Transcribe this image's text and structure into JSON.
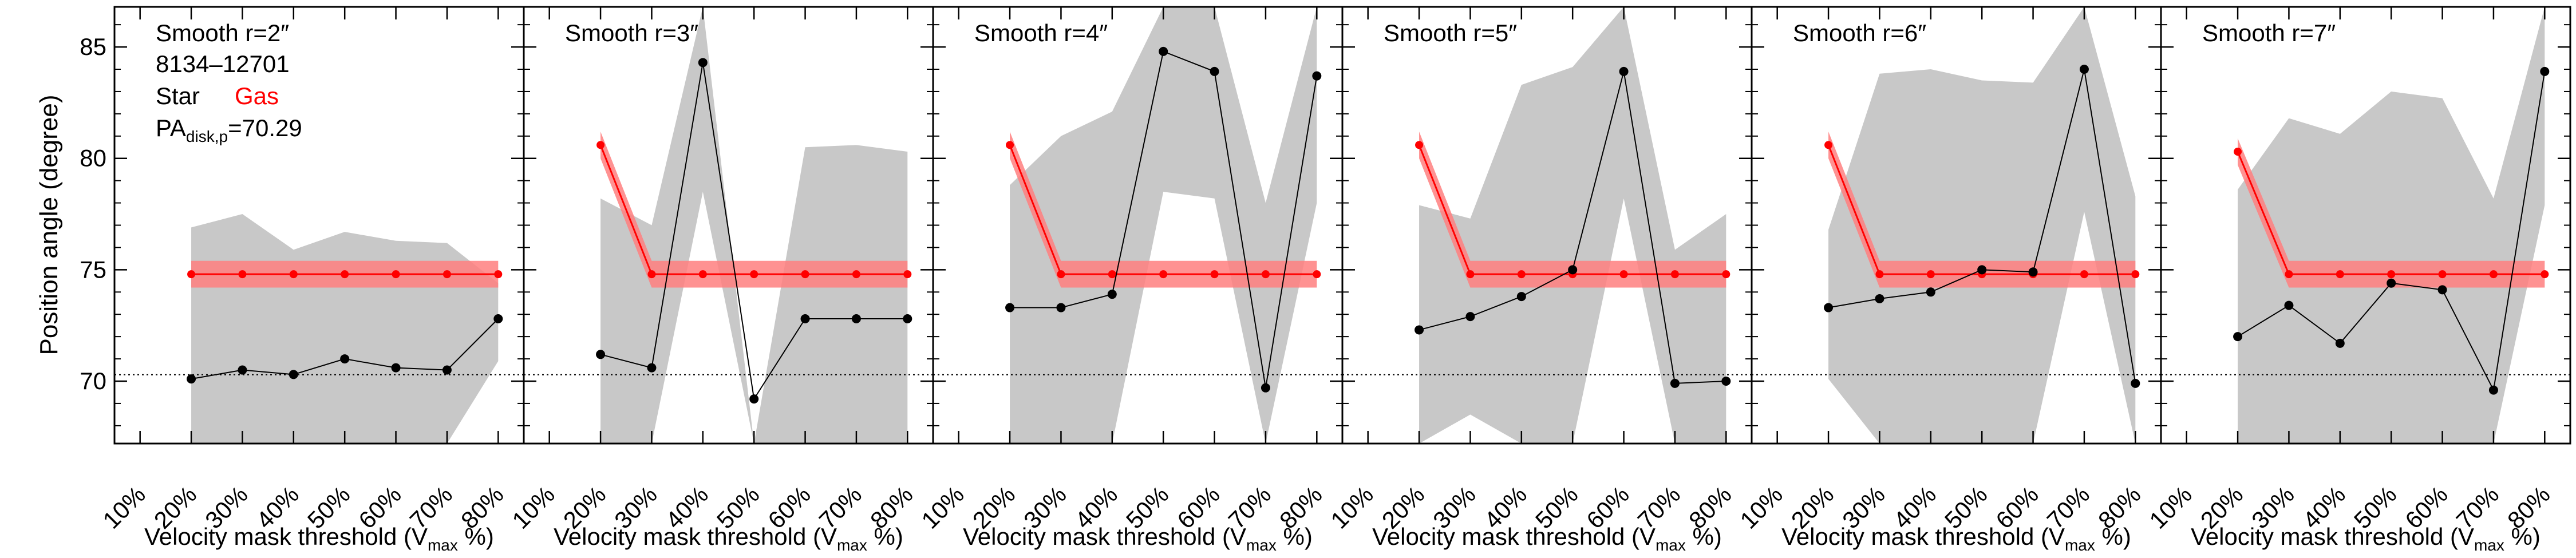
{
  "figure": {
    "y_axis_label": "Position angle (degree)",
    "x_axis_label": "Velocity mask threshold (V",
    "x_axis_label_sub": "max",
    "x_axis_label_tail": " %)",
    "y_ticks": [
      70,
      75,
      80,
      85
    ],
    "x_ticks": [
      "10%",
      "20%",
      "30%",
      "40%",
      "50%",
      "60%",
      "70%",
      "80%"
    ],
    "ylim": [
      67.2,
      86.8
    ],
    "xlim": [
      0.05,
      0.85
    ],
    "info": {
      "galaxy": "8134–12701",
      "legend_star": "Star",
      "legend_gas": "Gas",
      "pa_prefix": "PA",
      "pa_sub": "disk,p",
      "pa_value": "=70.29"
    },
    "colors": {
      "star": "#000000",
      "gas": "#ff0000",
      "gas_band": "#ff7f7f",
      "error_band": "#c8c8c8"
    }
  },
  "chart_data": [
    {
      "type": "line",
      "title": "Smooth r=2″",
      "x": [
        0.2,
        0.3,
        0.4,
        0.5,
        0.6,
        0.7,
        0.8
      ],
      "reference_line": 70.29,
      "series": [
        {
          "name": "Star",
          "values": [
            70.1,
            70.5,
            70.3,
            71.0,
            70.6,
            70.5,
            72.8
          ],
          "err_upper": [
            76.9,
            77.5,
            75.9,
            76.7,
            76.3,
            76.2,
            74.4
          ],
          "err_lower": [
            67.2,
            67.2,
            67.2,
            67.2,
            67.2,
            67.2,
            70.9
          ]
        },
        {
          "name": "Gas",
          "values": [
            74.8,
            74.8,
            74.8,
            74.8,
            74.8,
            74.8,
            74.8
          ],
          "band": [
            74.2,
            75.4
          ]
        }
      ]
    },
    {
      "type": "line",
      "title": "Smooth r=3″",
      "x": [
        0.2,
        0.3,
        0.4,
        0.5,
        0.6,
        0.7,
        0.8
      ],
      "reference_line": 70.29,
      "series": [
        {
          "name": "Star",
          "values": [
            71.2,
            70.6,
            84.3,
            69.2,
            72.8,
            72.8,
            72.8
          ],
          "err_upper": [
            78.2,
            77.0,
            86.8,
            67.2,
            80.5,
            80.6,
            80.3
          ],
          "err_lower": [
            67.2,
            67.2,
            78.5,
            67.2,
            67.2,
            67.2,
            67.2
          ]
        },
        {
          "name": "Gas",
          "values": [
            80.6,
            74.8,
            74.8,
            74.8,
            74.8,
            74.8,
            74.8
          ],
          "band": [
            74.2,
            75.4
          ]
        }
      ]
    },
    {
      "type": "line",
      "title": "Smooth r=4″",
      "x": [
        0.2,
        0.3,
        0.4,
        0.5,
        0.6,
        0.7,
        0.8
      ],
      "reference_line": 70.29,
      "series": [
        {
          "name": "Star",
          "values": [
            73.3,
            73.3,
            73.9,
            84.8,
            83.9,
            69.7,
            83.7
          ],
          "err_upper": [
            78.8,
            81.0,
            82.1,
            86.8,
            86.8,
            78.0,
            86.8
          ],
          "err_lower": [
            67.2,
            67.2,
            67.2,
            78.5,
            78.2,
            67.2,
            78.0
          ]
        },
        {
          "name": "Gas",
          "values": [
            80.6,
            74.8,
            74.8,
            74.8,
            74.8,
            74.8,
            74.8
          ],
          "band": [
            74.2,
            75.4
          ]
        }
      ]
    },
    {
      "type": "line",
      "title": "Smooth r=5″",
      "x": [
        0.2,
        0.3,
        0.4,
        0.5,
        0.6,
        0.7,
        0.8
      ],
      "reference_line": 70.29,
      "series": [
        {
          "name": "Star",
          "values": [
            72.3,
            72.9,
            73.8,
            75.0,
            83.9,
            69.9,
            70.0
          ],
          "err_upper": [
            77.9,
            77.3,
            83.3,
            84.1,
            86.8,
            75.9,
            77.5
          ],
          "err_lower": [
            67.2,
            68.5,
            67.2,
            67.2,
            78.2,
            67.2,
            67.2
          ]
        },
        {
          "name": "Gas",
          "values": [
            80.6,
            74.8,
            74.8,
            74.8,
            74.8,
            74.8,
            74.8
          ],
          "band": [
            74.2,
            75.4
          ]
        }
      ]
    },
    {
      "type": "line",
      "title": "Smooth r=6″",
      "x": [
        0.2,
        0.3,
        0.4,
        0.5,
        0.6,
        0.7,
        0.8
      ],
      "reference_line": 70.29,
      "series": [
        {
          "name": "Star",
          "values": [
            73.3,
            73.7,
            74.0,
            75.0,
            74.9,
            84.0,
            69.9
          ],
          "err_upper": [
            76.8,
            83.8,
            84.0,
            83.5,
            83.4,
            86.8,
            78.3
          ],
          "err_lower": [
            70.1,
            67.2,
            67.2,
            67.2,
            67.2,
            77.6,
            67.2
          ]
        },
        {
          "name": "Gas",
          "values": [
            80.6,
            74.8,
            74.8,
            74.8,
            74.8,
            74.8,
            74.8
          ],
          "band": [
            74.2,
            75.4
          ]
        }
      ]
    },
    {
      "type": "line",
      "title": "Smooth r=7″",
      "x": [
        0.2,
        0.3,
        0.4,
        0.5,
        0.6,
        0.7,
        0.8
      ],
      "reference_line": 70.29,
      "series": [
        {
          "name": "Star",
          "values": [
            72.0,
            73.4,
            71.7,
            74.4,
            74.1,
            69.6,
            83.9
          ],
          "err_upper": [
            78.6,
            81.8,
            81.1,
            83.0,
            82.7,
            78.2,
            86.8
          ],
          "err_lower": [
            67.2,
            67.2,
            67.2,
            67.2,
            67.2,
            67.2,
            77.9
          ]
        },
        {
          "name": "Gas",
          "values": [
            80.3,
            74.8,
            74.8,
            74.8,
            74.8,
            74.8,
            74.8
          ],
          "band": [
            74.2,
            75.4
          ]
        }
      ]
    }
  ]
}
